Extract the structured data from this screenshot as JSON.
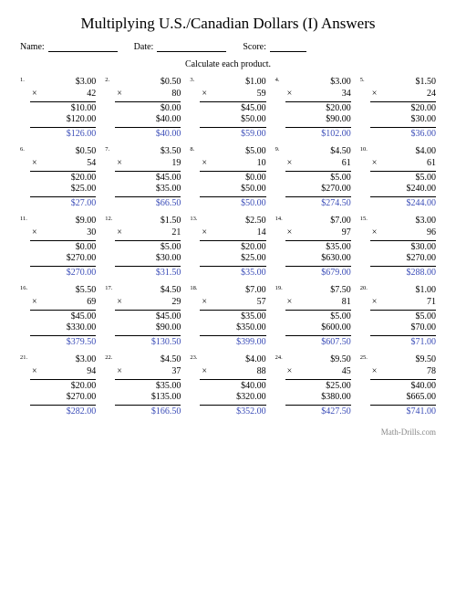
{
  "title": "Multiplying U.S./Canadian Dollars (I) Answers",
  "labels": {
    "name": "Name:",
    "date": "Date:",
    "score": "Score:"
  },
  "instruction": "Calculate each product.",
  "footer": "Math-Drills.com",
  "field_widths": {
    "name": 76,
    "date": 76,
    "score": 40
  },
  "answer_color": "#3b4db8",
  "problems": [
    {
      "n": "1.",
      "a": "$3.00",
      "b": "42",
      "p1": "$10.00",
      "p2": "$120.00",
      "ans": "$126.00"
    },
    {
      "n": "2.",
      "a": "$0.50",
      "b": "80",
      "p1": "$0.00",
      "p2": "$40.00",
      "ans": "$40.00"
    },
    {
      "n": "3.",
      "a": "$1.00",
      "b": "59",
      "p1": "$45.00",
      "p2": "$50.00",
      "ans": "$59.00"
    },
    {
      "n": "4.",
      "a": "$3.00",
      "b": "34",
      "p1": "$20.00",
      "p2": "$90.00",
      "ans": "$102.00"
    },
    {
      "n": "5.",
      "a": "$1.50",
      "b": "24",
      "p1": "$20.00",
      "p2": "$30.00",
      "ans": "$36.00"
    },
    {
      "n": "6.",
      "a": "$0.50",
      "b": "54",
      "p1": "$20.00",
      "p2": "$25.00",
      "ans": "$27.00"
    },
    {
      "n": "7.",
      "a": "$3.50",
      "b": "19",
      "p1": "$45.00",
      "p2": "$35.00",
      "ans": "$66.50"
    },
    {
      "n": "8.",
      "a": "$5.00",
      "b": "10",
      "p1": "$0.00",
      "p2": "$50.00",
      "ans": "$50.00"
    },
    {
      "n": "9.",
      "a": "$4.50",
      "b": "61",
      "p1": "$5.00",
      "p2": "$270.00",
      "ans": "$274.50"
    },
    {
      "n": "10.",
      "a": "$4.00",
      "b": "61",
      "p1": "$5.00",
      "p2": "$240.00",
      "ans": "$244.00"
    },
    {
      "n": "11.",
      "a": "$9.00",
      "b": "30",
      "p1": "$0.00",
      "p2": "$270.00",
      "ans": "$270.00"
    },
    {
      "n": "12.",
      "a": "$1.50",
      "b": "21",
      "p1": "$5.00",
      "p2": "$30.00",
      "ans": "$31.50"
    },
    {
      "n": "13.",
      "a": "$2.50",
      "b": "14",
      "p1": "$20.00",
      "p2": "$25.00",
      "ans": "$35.00"
    },
    {
      "n": "14.",
      "a": "$7.00",
      "b": "97",
      "p1": "$35.00",
      "p2": "$630.00",
      "ans": "$679.00"
    },
    {
      "n": "15.",
      "a": "$3.00",
      "b": "96",
      "p1": "$30.00",
      "p2": "$270.00",
      "ans": "$288.00"
    },
    {
      "n": "16.",
      "a": "$5.50",
      "b": "69",
      "p1": "$45.00",
      "p2": "$330.00",
      "ans": "$379.50"
    },
    {
      "n": "17.",
      "a": "$4.50",
      "b": "29",
      "p1": "$45.00",
      "p2": "$90.00",
      "ans": "$130.50"
    },
    {
      "n": "18.",
      "a": "$7.00",
      "b": "57",
      "p1": "$35.00",
      "p2": "$350.00",
      "ans": "$399.00"
    },
    {
      "n": "19.",
      "a": "$7.50",
      "b": "81",
      "p1": "$5.00",
      "p2": "$600.00",
      "ans": "$607.50"
    },
    {
      "n": "20.",
      "a": "$1.00",
      "b": "71",
      "p1": "$5.00",
      "p2": "$70.00",
      "ans": "$71.00"
    },
    {
      "n": "21.",
      "a": "$3.00",
      "b": "94",
      "p1": "$20.00",
      "p2": "$270.00",
      "ans": "$282.00"
    },
    {
      "n": "22.",
      "a": "$4.50",
      "b": "37",
      "p1": "$35.00",
      "p2": "$135.00",
      "ans": "$166.50"
    },
    {
      "n": "23.",
      "a": "$4.00",
      "b": "88",
      "p1": "$40.00",
      "p2": "$320.00",
      "ans": "$352.00"
    },
    {
      "n": "24.",
      "a": "$9.50",
      "b": "45",
      "p1": "$25.00",
      "p2": "$380.00",
      "ans": "$427.50"
    },
    {
      "n": "25.",
      "a": "$9.50",
      "b": "78",
      "p1": "$40.00",
      "p2": "$665.00",
      "ans": "$741.00"
    }
  ]
}
